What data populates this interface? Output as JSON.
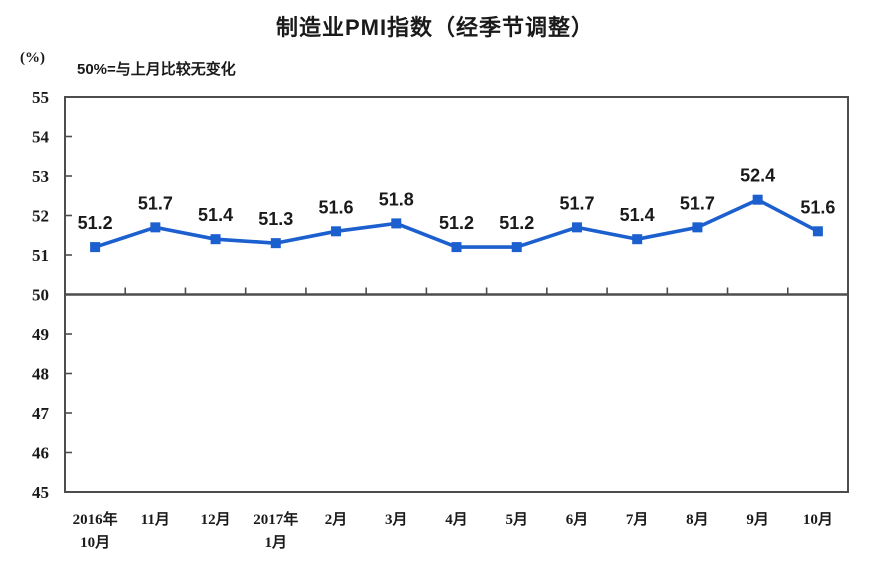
{
  "header": {
    "title": "制造业PMI指数（经季节调整）",
    "unit_label": "(%)",
    "reference_note": "50%=与上月比较无变化"
  },
  "chart_data": {
    "type": "line",
    "title": "制造业PMI指数（经季节调整）",
    "ylabel": "(%)",
    "annotation": "50%=与上月比较无变化",
    "categories": [
      "2016年\n10月",
      "11月",
      "12月",
      "2017年\n1月",
      "2月",
      "3月",
      "4月",
      "5月",
      "6月",
      "7月",
      "8月",
      "9月",
      "10月"
    ],
    "values": [
      51.2,
      51.7,
      51.4,
      51.3,
      51.6,
      51.8,
      51.2,
      51.2,
      51.7,
      51.4,
      51.7,
      52.4,
      51.6
    ],
    "ylim": [
      45,
      55
    ],
    "ytick_step": 1,
    "reference_line_y": 50,
    "grid": "off",
    "legend": "none",
    "marker": "square",
    "colors": {
      "series": "#1C5FCE",
      "axis": "#4d4d4d",
      "data_label": "#1a1a1a",
      "tick_label": "#1a1a1a"
    }
  }
}
